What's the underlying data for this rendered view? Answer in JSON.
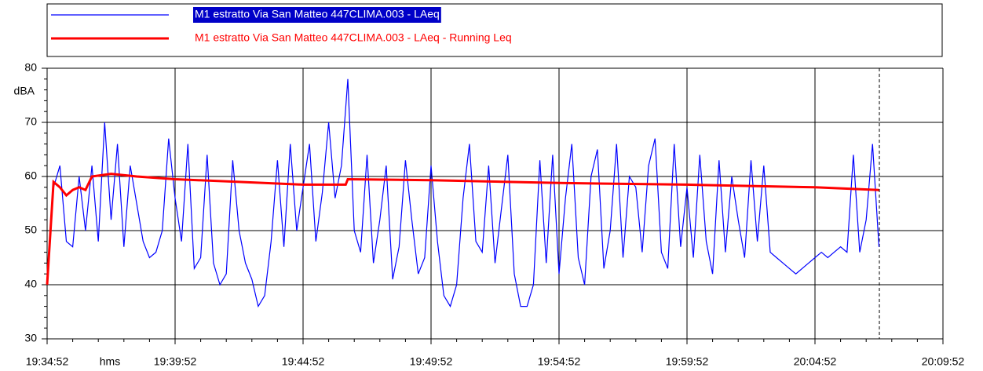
{
  "chart_data": {
    "type": "line",
    "x_label": "hms",
    "y_label": "dBA",
    "xlim": [
      0,
      2100
    ],
    "xticks": [
      {
        "value": 0,
        "label": "19:34:52"
      },
      {
        "value": 300,
        "label": "19:39:52"
      },
      {
        "value": 600,
        "label": "19:44:52"
      },
      {
        "value": 900,
        "label": "19:49:52"
      },
      {
        "value": 1200,
        "label": "19:54:52"
      },
      {
        "value": 1500,
        "label": "19:59:52"
      },
      {
        "value": 1800,
        "label": "20:04:52"
      },
      {
        "value": 2100,
        "label": "20:09:52"
      }
    ],
    "ylim": [
      30,
      80
    ],
    "yticks": [
      30,
      40,
      50,
      60,
      70,
      80
    ],
    "grid": true,
    "legend": "top",
    "series": [
      {
        "name": "M1 estratto Via San Matteo 447CLIMA.003 - LAeq",
        "color": "#0000ff",
        "x": [
          0,
          15,
          30,
          45,
          60,
          75,
          90,
          105,
          120,
          135,
          150,
          165,
          180,
          195,
          210,
          225,
          240,
          255,
          270,
          285,
          300,
          315,
          330,
          345,
          360,
          375,
          390,
          405,
          420,
          435,
          450,
          465,
          480,
          495,
          510,
          525,
          540,
          555,
          570,
          585,
          600,
          615,
          630,
          645,
          660,
          675,
          690,
          705,
          720,
          735,
          750,
          765,
          780,
          795,
          810,
          825,
          840,
          855,
          870,
          885,
          900,
          915,
          930,
          945,
          960,
          975,
          990,
          1005,
          1020,
          1035,
          1050,
          1065,
          1080,
          1095,
          1110,
          1125,
          1140,
          1155,
          1170,
          1185,
          1200,
          1215,
          1230,
          1245,
          1260,
          1275,
          1290,
          1305,
          1320,
          1335,
          1350,
          1365,
          1380,
          1395,
          1410,
          1425,
          1440,
          1455,
          1470,
          1485,
          1500,
          1515,
          1530,
          1545,
          1560,
          1575,
          1590,
          1605,
          1620,
          1635,
          1650,
          1665,
          1680,
          1695,
          1710,
          1725,
          1740,
          1755,
          1770,
          1785,
          1800,
          1815,
          1830,
          1845,
          1860,
          1875,
          1890,
          1905,
          1920,
          1935,
          1950
        ],
        "values": [
          40,
          58,
          62,
          48,
          47,
          60,
          50,
          62,
          48,
          70,
          52,
          66,
          47,
          62,
          55,
          48,
          45,
          46,
          50,
          67,
          56,
          48,
          66,
          43,
          45,
          64,
          44,
          40,
          42,
          63,
          50,
          44,
          41,
          36,
          38,
          48,
          63,
          47,
          66,
          50,
          58,
          66,
          48,
          57,
          70,
          56,
          62,
          78,
          50,
          46,
          64,
          44,
          52,
          62,
          41,
          47,
          63,
          52,
          42,
          45,
          62,
          48,
          38,
          36,
          40,
          56,
          66,
          48,
          46,
          62,
          44,
          54,
          64,
          42,
          36,
          36,
          40,
          63,
          44,
          64,
          42,
          56,
          66,
          45,
          40,
          60,
          65,
          43,
          50,
          66,
          45,
          60,
          58,
          46,
          62,
          67,
          46,
          43,
          66,
          47,
          58,
          45,
          64,
          48,
          42,
          63,
          46,
          60,
          52,
          45,
          63,
          48,
          62,
          46,
          45,
          44,
          43,
          42,
          43,
          44,
          45,
          46,
          45,
          46,
          47,
          46,
          64,
          46,
          52,
          66,
          47
        ]
      },
      {
        "name": "M1 estratto Via San Matteo 447CLIMA.003 - LAeq - Running Leq",
        "color": "#ff0000",
        "x": [
          0,
          15,
          30,
          45,
          60,
          75,
          90,
          105,
          150,
          210,
          300,
          450,
          600,
          700,
          705,
          900,
          1200,
          1500,
          1800,
          1950
        ],
        "values": [
          40,
          59,
          58,
          56.5,
          57.5,
          58,
          57.5,
          60,
          60.5,
          60,
          59.5,
          59,
          58.5,
          58.5,
          59.5,
          59.3,
          58.8,
          58.5,
          58,
          57.5
        ]
      }
    ]
  }
}
